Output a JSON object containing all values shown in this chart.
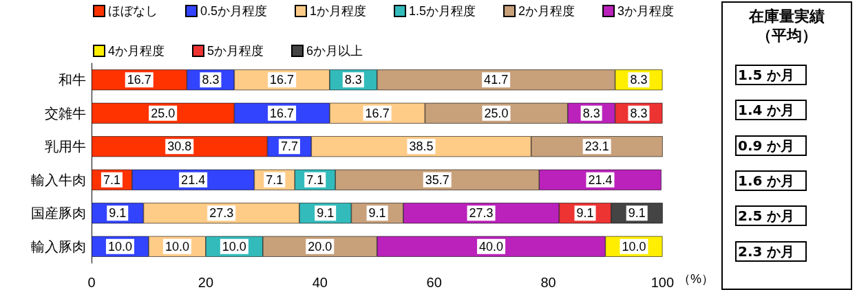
{
  "chart_data": {
    "type": "bar",
    "orientation": "horizontal",
    "stacked": true,
    "categories": [
      "和牛",
      "交雑牛",
      "乳用牛",
      "輸入牛肉",
      "国産豚肉",
      "輸入豚肉"
    ],
    "series": [
      {
        "name": "ほぼなし",
        "color": "#ff3300",
        "values": [
          16.7,
          25.0,
          30.8,
          7.1,
          null,
          null
        ],
        "value_labels": [
          "16.7",
          "25.0",
          "30.8",
          "7.1",
          null,
          null
        ]
      },
      {
        "name": "0.5か月程度",
        "color": "#3344ff",
        "values": [
          8.3,
          16.7,
          7.7,
          21.4,
          9.1,
          10.0
        ],
        "value_labels": [
          "8.3",
          "16.7",
          "7.7",
          "21.4",
          "9.1",
          "10.0"
        ]
      },
      {
        "name": "1か月程度",
        "color": "#ffcc88",
        "values": [
          16.7,
          16.7,
          38.5,
          7.1,
          27.3,
          10.0
        ],
        "value_labels": [
          "16.7",
          "16.7",
          "38.5",
          "7.1",
          "27.3",
          "10.0"
        ]
      },
      {
        "name": "1.5か月程度",
        "color": "#33bbbb",
        "values": [
          8.3,
          null,
          null,
          7.1,
          9.1,
          10.0
        ],
        "value_labels": [
          "8.3",
          null,
          null,
          "7.1",
          "9.1",
          "10.0"
        ]
      },
      {
        "name": "2か月程度",
        "color": "#c8a07a",
        "values": [
          41.7,
          25.0,
          23.1,
          35.7,
          9.1,
          20.0
        ],
        "value_labels": [
          "41.7",
          "25.0",
          "23.1",
          "35.7",
          "9.1",
          "20.0"
        ]
      },
      {
        "name": "3か月程度",
        "color": "#bb22bb",
        "values": [
          null,
          8.3,
          null,
          21.4,
          27.3,
          40.0
        ],
        "value_labels": [
          null,
          "8.3",
          null,
          "21.4",
          "27.3",
          "40.0"
        ]
      },
      {
        "name": "4か月程度",
        "color": "#ffee00",
        "values": [
          8.3,
          null,
          null,
          null,
          null,
          10.0
        ],
        "value_labels": [
          "8.3",
          null,
          null,
          null,
          null,
          "10.0"
        ]
      },
      {
        "name": "5か月程度",
        "color": "#ee3333",
        "values": [
          null,
          8.3,
          null,
          null,
          9.1,
          null
        ],
        "value_labels": [
          null,
          "8.3",
          null,
          null,
          "9.1",
          null
        ]
      },
      {
        "name": "6か月以上",
        "color": "#444444",
        "values": [
          null,
          null,
          null,
          null,
          9.1,
          null
        ],
        "value_labels": [
          null,
          null,
          null,
          null,
          "9.1",
          null
        ]
      }
    ],
    "xlim": [
      0,
      100
    ],
    "xticks": [
      0,
      20,
      40,
      60,
      80,
      100
    ],
    "xlabel": "（%）",
    "legend": "top",
    "grid": false,
    "annotations": [
      "在庫量実績",
      "（平均）",
      "1.5 か月",
      "1.4 か月",
      "0.9 か月",
      "1.6 か月",
      "2.5 か月",
      "2.3 か月"
    ]
  }
}
